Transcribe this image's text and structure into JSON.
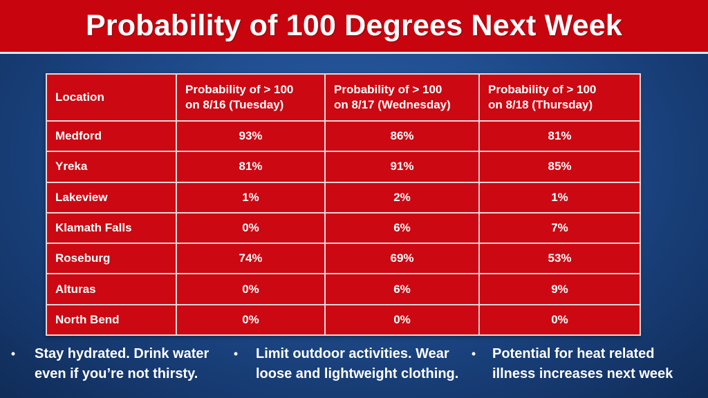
{
  "title": "Probability of 100 Degrees Next Week",
  "table": {
    "headers": [
      "Location",
      "Probability of  > 100\non 8/16 (Tuesday)",
      "Probability of > 100\non 8/17 (Wednesday)",
      "Probability of > 100\non 8/18 (Thursday)"
    ],
    "rows": [
      [
        "Medford",
        "93%",
        "86%",
        "81%"
      ],
      [
        "Yreka",
        "81%",
        "91%",
        "85%"
      ],
      [
        "Lakeview",
        "1%",
        "2%",
        "1%"
      ],
      [
        "Klamath Falls",
        "0%",
        "6%",
        "7%"
      ],
      [
        "Roseburg",
        "74%",
        "69%",
        "53%"
      ],
      [
        "Alturas",
        "0%",
        "6%",
        "9%"
      ],
      [
        "North Bend",
        "0%",
        "0%",
        "0%"
      ]
    ]
  },
  "tips": [
    {
      "bullet": "•",
      "text": "Stay hydrated. Drink water\neven if you’re not thirsty."
    },
    {
      "bullet": "•",
      "text": "Limit outdoor activities. Wear\nloose and lightweight clothing."
    },
    {
      "bullet": "•",
      "text": "Potential for heat related\nillness increases next week"
    }
  ],
  "colors": {
    "title_bar": "#c8050f",
    "table_fill": "#cc0812",
    "background": "#214f91",
    "text": "#ffffff"
  }
}
